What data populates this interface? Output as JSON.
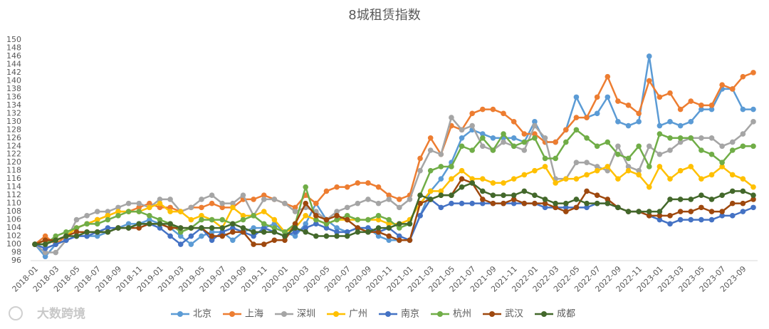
{
  "chart_data": {
    "type": "line",
    "title": "8城租赁指数",
    "logo": "大数跨境",
    "categories": [
      "2018-01",
      null,
      "2018-03",
      null,
      "2018-05",
      null,
      "2018-07",
      null,
      "2018-09",
      null,
      "2018-11",
      null,
      "2019-01",
      null,
      "2019-03",
      null,
      "2019-05",
      null,
      "2019-07",
      null,
      "2019-09",
      null,
      "2019-11",
      null,
      "2020-01",
      null,
      "2020-03",
      null,
      "2020-05",
      null,
      "2020-07",
      null,
      "2020-09",
      null,
      "2020-11",
      null,
      "2021-01",
      null,
      "2021-03",
      null,
      "2021-05",
      null,
      "2021-07",
      null,
      "2021-09",
      null,
      "2021-11",
      null,
      "2022-01",
      null,
      "2022-03",
      null,
      "2022-05",
      null,
      "2022-07",
      null,
      "2022-09",
      null,
      "2022-11",
      null,
      "2023-01",
      null,
      "2023-03",
      null,
      "2023-05",
      null,
      "2023-07",
      null,
      "2023-09",
      null
    ],
    "ylim": [
      96,
      150
    ],
    "yticks": [
      96,
      98,
      100,
      102,
      104,
      106,
      108,
      110,
      112,
      114,
      116,
      118,
      120,
      122,
      124,
      126,
      128,
      130,
      132,
      134,
      136,
      138,
      140,
      142,
      144,
      146,
      148,
      150
    ],
    "grid": false,
    "legend": "bottom",
    "series": [
      {
        "name": "北京",
        "color": "#5b9bd5",
        "values": [
          100,
          97,
          100,
          101,
          102,
          102,
          102,
          103,
          104,
          105,
          105,
          106,
          105,
          104,
          102,
          100,
          102,
          103,
          103,
          101,
          103,
          104,
          104,
          105,
          103,
          102,
          105,
          110,
          106,
          104,
          103,
          104,
          104,
          102,
          101,
          101,
          101,
          107,
          113,
          116,
          120,
          126,
          128,
          127,
          126,
          126,
          126,
          125,
          130,
          125,
          125,
          128,
          136,
          131,
          132,
          136,
          130,
          129,
          130,
          146,
          129,
          130,
          129,
          130,
          133,
          133,
          138,
          138,
          133,
          133
        ]
      },
      {
        "name": "上海",
        "color": "#ed7d31",
        "values": [
          100,
          102,
          100,
          102,
          104,
          105,
          106,
          107,
          108,
          108,
          109,
          110,
          109,
          109,
          108,
          109,
          109,
          110,
          109,
          109,
          111,
          111,
          112,
          111,
          110,
          109,
          112,
          110,
          113,
          114,
          114,
          115,
          115,
          114,
          112,
          111,
          112,
          121,
          126,
          122,
          129,
          128,
          132,
          133,
          133,
          132,
          130,
          127,
          127,
          125,
          125,
          128,
          131,
          131,
          136,
          141,
          135,
          134,
          132,
          140,
          136,
          137,
          133,
          135,
          134,
          134,
          139,
          138,
          141,
          142
        ]
      },
      {
        "name": "深圳",
        "color": "#a5a5a5",
        "values": [
          100,
          98,
          98,
          101,
          106,
          107,
          108,
          108,
          109,
          110,
          110,
          109,
          111,
          111,
          108,
          109,
          111,
          112,
          110,
          110,
          112,
          107,
          111,
          111,
          110,
          108,
          109,
          108,
          106,
          108,
          109,
          110,
          111,
          110,
          111,
          109,
          111,
          118,
          123,
          122,
          131,
          128,
          129,
          124,
          123,
          125,
          124,
          123,
          129,
          126,
          116,
          116,
          120,
          120,
          119,
          118,
          124,
          119,
          118,
          124,
          122,
          123,
          125,
          126,
          126,
          126,
          124,
          125,
          127,
          130
        ]
      },
      {
        "name": "广州",
        "color": "#ffc000",
        "values": [
          100,
          101,
          101,
          102,
          104,
          105,
          106,
          107,
          108,
          108,
          108,
          109,
          110,
          108,
          108,
          106,
          107,
          106,
          104,
          109,
          107,
          107,
          108,
          106,
          103,
          104,
          107,
          106,
          105,
          106,
          106,
          106,
          106,
          106,
          105,
          105,
          106,
          110,
          113,
          113,
          116,
          118,
          116,
          116,
          115,
          115,
          116,
          117,
          118,
          119,
          115,
          116,
          116,
          117,
          118,
          119,
          116,
          118,
          117,
          114,
          119,
          116,
          118,
          119,
          116,
          117,
          119,
          117,
          116,
          114
        ]
      },
      {
        "name": "南京",
        "color": "#4472c4",
        "values": [
          100,
          99,
          100,
          101,
          102,
          102,
          103,
          104,
          104,
          104,
          105,
          105,
          104,
          102,
          100,
          102,
          104,
          101,
          103,
          104,
          103,
          102,
          104,
          103,
          102,
          103,
          104,
          105,
          104,
          103,
          103,
          104,
          104,
          103,
          104,
          102,
          101,
          107,
          111,
          109,
          110,
          110,
          110,
          110,
          110,
          110,
          110,
          110,
          110,
          109,
          109,
          109,
          109,
          109,
          110,
          110,
          109,
          108,
          108,
          107,
          106,
          105,
          106,
          106,
          106,
          106,
          107,
          107,
          108,
          109
        ]
      },
      {
        "name": "杭州",
        "color": "#70ad47",
        "values": [
          100,
          100,
          102,
          103,
          104,
          105,
          105,
          106,
          107,
          108,
          108,
          107,
          106,
          105,
          103,
          104,
          106,
          106,
          106,
          105,
          106,
          107,
          105,
          104,
          103,
          105,
          114,
          106,
          105,
          106,
          107,
          106,
          106,
          107,
          106,
          104,
          105,
          112,
          118,
          119,
          119,
          124,
          123,
          126,
          123,
          127,
          124,
          125,
          126,
          121,
          121,
          125,
          128,
          126,
          124,
          125,
          122,
          121,
          124,
          119,
          127,
          126,
          126,
          126,
          123,
          122,
          120,
          123,
          124,
          124
        ]
      },
      {
        "name": "武汉",
        "color": "#9e480e",
        "values": [
          100,
          101,
          101,
          102,
          103,
          103,
          103,
          103,
          104,
          104,
          104,
          105,
          105,
          104,
          104,
          104,
          104,
          102,
          102,
          103,
          103,
          100,
          100,
          101,
          101,
          105,
          110,
          107,
          106,
          107,
          106,
          104,
          103,
          103,
          102,
          101,
          101,
          110,
          111,
          112,
          112,
          116,
          115,
          111,
          110,
          110,
          111,
          110,
          110,
          110,
          109,
          108,
          109,
          113,
          112,
          111,
          109,
          108,
          108,
          107,
          107,
          107,
          108,
          108,
          109,
          108,
          108,
          110,
          110,
          111
        ]
      },
      {
        "name": "成都",
        "color": "#43682b",
        "values": [
          100,
          100,
          101,
          102,
          102,
          103,
          103,
          103,
          104,
          104,
          105,
          105,
          105,
          105,
          104,
          104,
          104,
          104,
          104,
          105,
          104,
          103,
          103,
          103,
          102,
          104,
          103,
          102,
          102,
          102,
          102,
          103,
          103,
          104,
          104,
          105,
          105,
          112,
          111,
          112,
          112,
          114,
          115,
          113,
          112,
          112,
          112,
          113,
          112,
          111,
          110,
          110,
          111,
          110,
          110,
          110,
          109,
          108,
          108,
          108,
          108,
          111,
          111,
          111,
          112,
          111,
          112,
          113,
          113,
          112
        ]
      }
    ]
  }
}
